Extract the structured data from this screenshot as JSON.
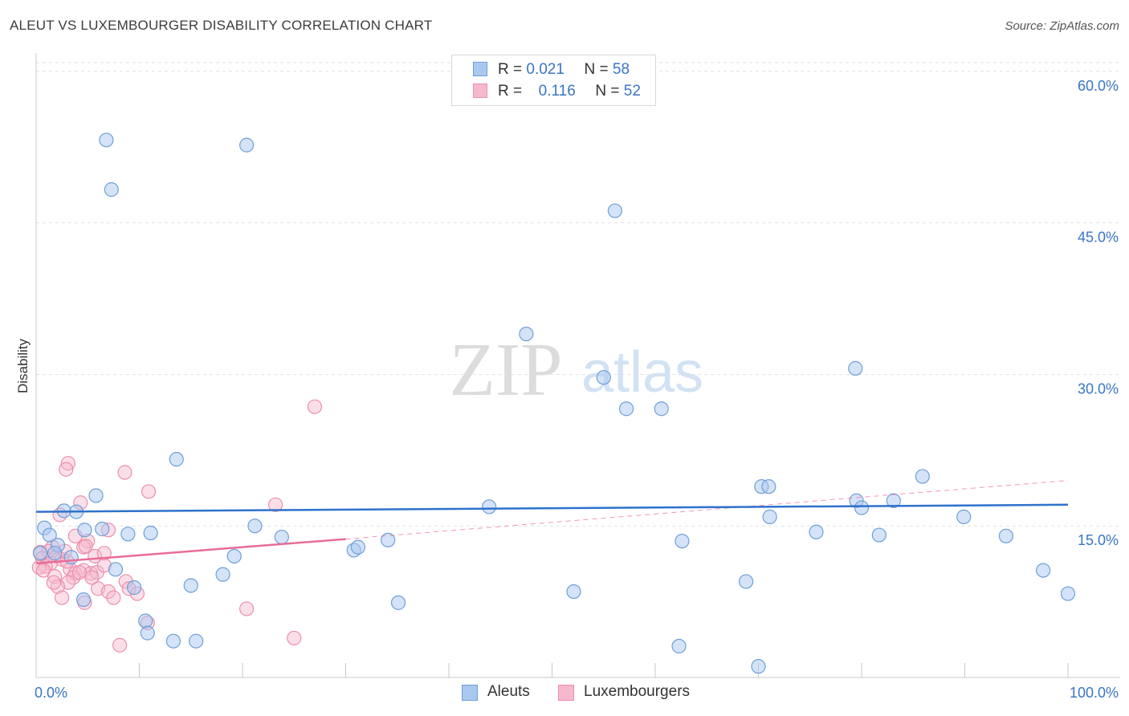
{
  "header": {
    "title": "ALEUT VS LUXEMBOURGER DISABILITY CORRELATION CHART",
    "source": "Source: ZipAtlas.com"
  },
  "watermark": {
    "zip": "ZIP",
    "atlas": "atlas"
  },
  "stats": {
    "aleut": {
      "r_label": "R =",
      "r_value": "0.021",
      "n_label": "N =",
      "n_value": "58"
    },
    "luxembourger": {
      "r_label": "R =",
      "r_value": "0.116",
      "n_label": "N =",
      "n_value": "52"
    }
  },
  "legend": {
    "aleut": "Aleuts",
    "luxembourger": "Luxembourgers"
  },
  "colors": {
    "aleut_fill": "#a9c8f0",
    "aleut_stroke": "#6f9fd8",
    "aleut_line": "#2d72cc",
    "lux_fill": "#f6b8cc",
    "lux_stroke": "#eb8fae",
    "lux_line": "#e86c97",
    "axis_text": "#3a75c4",
    "grid": "#e2e2e2"
  },
  "chart_data": {
    "type": "scatter",
    "title": "ALEUT VS LUXEMBOURGER DISABILITY CORRELATION CHART",
    "xlabel": "",
    "ylabel": "Disability",
    "xlim": [
      0,
      100
    ],
    "ylim": [
      0,
      61.5
    ],
    "x_tick_labels": [
      "0.0%",
      "100.0%"
    ],
    "y_ticks": [
      15,
      30,
      45,
      60
    ],
    "y_tick_labels": [
      "15.0%",
      "30.0%",
      "45.0%",
      "60.0%"
    ],
    "series": [
      {
        "name": "Aleuts",
        "r": 0.021,
        "n": 58,
        "trend": {
          "x": [
            0,
            100
          ],
          "y": [
            16.4,
            17.1
          ]
        },
        "points": [
          [
            6.8,
            53.2
          ],
          [
            20.4,
            52.7
          ],
          [
            7.3,
            48.3
          ],
          [
            56.1,
            46.2
          ],
          [
            47.5,
            34.0
          ],
          [
            55.0,
            29.7
          ],
          [
            79.4,
            30.6
          ],
          [
            57.2,
            26.6
          ],
          [
            60.6,
            26.6
          ],
          [
            13.6,
            21.6
          ],
          [
            85.9,
            19.9
          ],
          [
            70.3,
            18.9
          ],
          [
            71.0,
            18.9
          ],
          [
            5.8,
            18.0
          ],
          [
            83.1,
            17.5
          ],
          [
            79.5,
            17.5
          ],
          [
            43.9,
            16.9
          ],
          [
            80.0,
            16.8
          ],
          [
            2.7,
            16.5
          ],
          [
            3.9,
            16.4
          ],
          [
            89.9,
            15.9
          ],
          [
            71.1,
            15.9
          ],
          [
            21.2,
            15.0
          ],
          [
            0.8,
            14.8
          ],
          [
            6.4,
            14.7
          ],
          [
            4.7,
            14.6
          ],
          [
            8.9,
            14.2
          ],
          [
            11.1,
            14.3
          ],
          [
            1.3,
            14.1
          ],
          [
            23.8,
            13.9
          ],
          [
            75.6,
            14.4
          ],
          [
            81.7,
            14.1
          ],
          [
            94.0,
            14.0
          ],
          [
            34.1,
            13.6
          ],
          [
            62.6,
            13.5
          ],
          [
            2.1,
            13.1
          ],
          [
            1.8,
            12.3
          ],
          [
            0.4,
            12.3
          ],
          [
            30.8,
            12.6
          ],
          [
            31.2,
            12.9
          ],
          [
            3.4,
            11.9
          ],
          [
            19.2,
            12.0
          ],
          [
            7.7,
            10.7
          ],
          [
            18.1,
            10.2
          ],
          [
            97.6,
            10.6
          ],
          [
            15.0,
            9.1
          ],
          [
            68.8,
            9.5
          ],
          [
            9.5,
            8.9
          ],
          [
            52.1,
            8.5
          ],
          [
            100.0,
            8.3
          ],
          [
            4.6,
            7.7
          ],
          [
            35.1,
            7.4
          ],
          [
            10.6,
            5.6
          ],
          [
            10.8,
            4.4
          ],
          [
            13.3,
            3.6
          ],
          [
            15.5,
            3.6
          ],
          [
            62.3,
            3.1
          ],
          [
            70.0,
            1.1
          ]
        ]
      },
      {
        "name": "Luxembourgers",
        "r": 0.116,
        "n": 52,
        "trend": {
          "x": [
            0,
            30
          ],
          "y": [
            11.3,
            13.7
          ]
        },
        "trend_extension": {
          "x": [
            30,
            100
          ],
          "y": [
            13.7,
            19.5
          ]
        },
        "points": [
          [
            27.0,
            26.8
          ],
          [
            3.1,
            21.2
          ],
          [
            2.9,
            20.6
          ],
          [
            8.6,
            20.3
          ],
          [
            10.9,
            18.4
          ],
          [
            4.3,
            17.3
          ],
          [
            23.2,
            17.1
          ],
          [
            2.3,
            16.1
          ],
          [
            7.0,
            14.6
          ],
          [
            3.8,
            14.0
          ],
          [
            5.0,
            13.5
          ],
          [
            1.6,
            12.9
          ],
          [
            0.4,
            12.4
          ],
          [
            1.2,
            12.5
          ],
          [
            0.6,
            11.8
          ],
          [
            2.0,
            12.0
          ],
          [
            5.7,
            12.0
          ],
          [
            6.6,
            12.3
          ],
          [
            4.6,
            12.9
          ],
          [
            1.4,
            11.3
          ],
          [
            2.5,
            11.7
          ],
          [
            0.9,
            11.0
          ],
          [
            0.3,
            10.9
          ],
          [
            0.7,
            10.6
          ],
          [
            1.8,
            10.0
          ],
          [
            3.3,
            10.7
          ],
          [
            3.8,
            10.3
          ],
          [
            4.6,
            10.6
          ],
          [
            5.3,
            10.3
          ],
          [
            3.6,
            9.9
          ],
          [
            4.2,
            10.4
          ],
          [
            3.1,
            9.4
          ],
          [
            2.1,
            9.0
          ],
          [
            8.7,
            9.5
          ],
          [
            6.0,
            8.8
          ],
          [
            9.0,
            8.8
          ],
          [
            7.0,
            8.5
          ],
          [
            9.8,
            8.3
          ],
          [
            2.5,
            7.9
          ],
          [
            7.5,
            7.9
          ],
          [
            4.7,
            7.4
          ],
          [
            20.4,
            6.8
          ],
          [
            10.8,
            5.4
          ],
          [
            25.0,
            3.9
          ],
          [
            8.1,
            3.2
          ],
          [
            5.9,
            10.4
          ],
          [
            4.8,
            13.0
          ],
          [
            3.0,
            11.5
          ],
          [
            2.8,
            12.5
          ],
          [
            6.6,
            11.1
          ],
          [
            1.7,
            9.4
          ],
          [
            5.4,
            9.9
          ]
        ]
      }
    ]
  }
}
